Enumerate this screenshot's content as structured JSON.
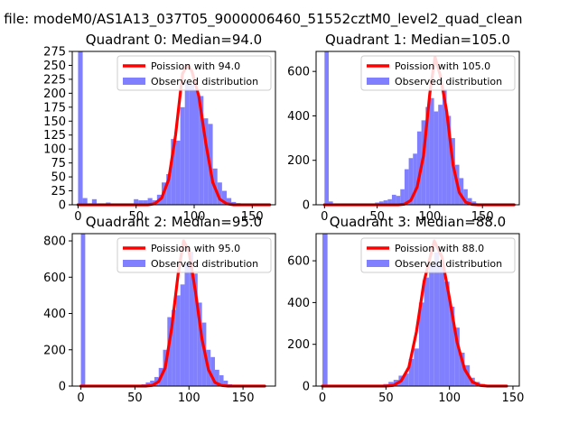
{
  "figure": {
    "suptitle": "n file: modeM0/AS1A13_037T05_9000006460_51552cztM0_level2_quad_clean"
  },
  "colors": {
    "observed": "#8080ff",
    "poisson": "#ff0000"
  },
  "legend_labels": {
    "observed": "Observed distribution"
  },
  "chart_data": [
    {
      "type": "bar",
      "title": "Quadrant 0: Median=94.0",
      "median": 94.0,
      "legend": [
        "Poission with 94.0",
        "Observed distribution"
      ],
      "legend_position": "top-right",
      "xlim": [
        -5,
        170
      ],
      "ylim": [
        0,
        275
      ],
      "xticks": [
        0,
        50,
        100,
        150
      ],
      "yticks": [
        0,
        25,
        50,
        75,
        100,
        125,
        150,
        175,
        200,
        225,
        250,
        275
      ],
      "bin_width": 4,
      "bins_x": [
        0,
        4,
        12,
        24,
        48,
        52,
        56,
        60,
        64,
        68,
        72,
        76,
        80,
        84,
        88,
        92,
        96,
        100,
        104,
        108,
        112,
        116,
        120,
        124,
        128,
        132,
        136
      ],
      "bins_y": [
        275,
        12,
        10,
        4,
        10,
        8,
        8,
        12,
        8,
        18,
        40,
        55,
        118,
        115,
        175,
        220,
        215,
        205,
        195,
        155,
        145,
        65,
        40,
        25,
        12,
        5,
        3
      ],
      "poisson_x": [
        60,
        66,
        72,
        78,
        84,
        90,
        94,
        98,
        104,
        110,
        116,
        122,
        128,
        134
      ],
      "poisson_y": [
        0,
        2,
        12,
        45,
        125,
        235,
        250,
        240,
        195,
        110,
        40,
        10,
        2,
        0
      ],
      "line_x_range": [
        0,
        165
      ]
    },
    {
      "type": "bar",
      "title": "Quadrant 1: Median=105.0",
      "median": 105.0,
      "legend": [
        "Poission with 105.0",
        "Observed distribution"
      ],
      "legend_position": "top-right",
      "xlim": [
        -8,
        185
      ],
      "ylim": [
        0,
        690
      ],
      "xticks": [
        0,
        50,
        100,
        150
      ],
      "yticks": [
        0,
        200,
        400,
        600
      ],
      "bin_width": 4,
      "bins_x": [
        0,
        4,
        44,
        48,
        52,
        56,
        60,
        64,
        68,
        72,
        76,
        80,
        84,
        88,
        92,
        96,
        100,
        104,
        108,
        112,
        116,
        120,
        124,
        128,
        132,
        136,
        140,
        144
      ],
      "bins_y": [
        690,
        15,
        5,
        10,
        15,
        20,
        25,
        45,
        40,
        70,
        160,
        210,
        230,
        330,
        380,
        440,
        480,
        420,
        450,
        520,
        400,
        300,
        180,
        120,
        70,
        30,
        15,
        5
      ],
      "poisson_x": [
        70,
        76,
        82,
        88,
        94,
        100,
        105,
        110,
        116,
        122,
        128,
        134,
        140,
        146
      ],
      "poisson_y": [
        0,
        3,
        20,
        80,
        220,
        500,
        665,
        580,
        420,
        180,
        55,
        12,
        2,
        0
      ],
      "line_x_range": [
        0,
        180
      ]
    },
    {
      "type": "bar",
      "title": "Quadrant 2: Median=95.0",
      "median": 95.0,
      "legend": [
        "Poission with 95.0",
        "Observed distribution"
      ],
      "legend_position": "top-right",
      "xlim": [
        -8,
        180
      ],
      "ylim": [
        0,
        840
      ],
      "xticks": [
        0,
        50,
        100,
        150
      ],
      "yticks": [
        0,
        200,
        400,
        600,
        800
      ],
      "bin_width": 4,
      "bins_x": [
        0,
        56,
        60,
        64,
        68,
        72,
        76,
        80,
        84,
        88,
        92,
        96,
        100,
        104,
        108,
        112,
        116,
        120,
        124,
        128,
        132,
        136
      ],
      "bins_y": [
        840,
        10,
        20,
        30,
        50,
        100,
        200,
        380,
        420,
        500,
        560,
        680,
        740,
        620,
        460,
        350,
        200,
        160,
        90,
        60,
        30,
        10
      ],
      "poisson_x": [
        60,
        66,
        72,
        78,
        84,
        90,
        95,
        100,
        106,
        112,
        118,
        124,
        130,
        136
      ],
      "poisson_y": [
        0,
        4,
        25,
        100,
        320,
        620,
        800,
        740,
        520,
        260,
        90,
        20,
        4,
        0
      ],
      "line_x_range": [
        0,
        170
      ]
    },
    {
      "type": "bar",
      "title": "Quadrant 3: Median=88.0",
      "median": 88.0,
      "legend": [
        "Poission with 88.0",
        "Observed distribution"
      ],
      "legend_position": "top-right",
      "xlim": [
        -5,
        155
      ],
      "ylim": [
        0,
        730
      ],
      "xticks": [
        0,
        50,
        100,
        150
      ],
      "yticks": [
        0,
        200,
        400,
        600
      ],
      "bin_width": 4,
      "bins_x": [
        0,
        48,
        52,
        56,
        60,
        64,
        68,
        72,
        76,
        80,
        84,
        88,
        92,
        96,
        100,
        104,
        108,
        112,
        116,
        120,
        124
      ],
      "bins_y": [
        730,
        10,
        20,
        30,
        50,
        60,
        130,
        180,
        400,
        520,
        580,
        640,
        600,
        500,
        380,
        280,
        160,
        100,
        40,
        20,
        10
      ],
      "poisson_x": [
        50,
        56,
        62,
        68,
        74,
        80,
        88,
        94,
        100,
        106,
        112,
        118,
        124,
        130
      ],
      "poisson_y": [
        0,
        4,
        25,
        90,
        260,
        500,
        695,
        620,
        420,
        210,
        80,
        20,
        4,
        0
      ],
      "line_x_range": [
        0,
        145
      ]
    }
  ]
}
